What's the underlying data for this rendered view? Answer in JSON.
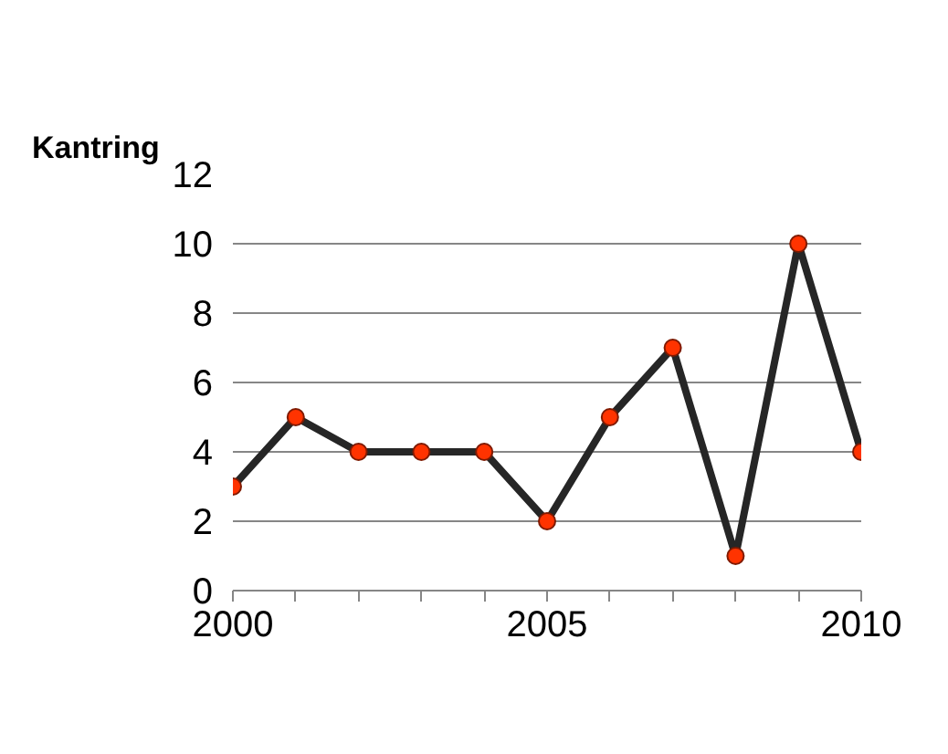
{
  "chart_data": {
    "type": "line",
    "title": "Kantring",
    "x": [
      2000,
      2001,
      2002,
      2003,
      2004,
      2005,
      2006,
      2007,
      2008,
      2009,
      2010
    ],
    "series": [
      {
        "color": "#262626",
        "values": [
          3,
          5,
          4,
          4,
          4,
          2,
          5,
          7,
          1,
          10,
          4
        ]
      }
    ],
    "xlim": [
      2000,
      2010
    ],
    "xticks": [
      2000,
      {
        "value": 2001,
        "label": null
      },
      {
        "value": 2002,
        "label": null
      },
      {
        "value": 2003,
        "label": null
      },
      {
        "value": 2004,
        "label": null
      },
      2005,
      {
        "value": 2006,
        "label": null
      },
      {
        "value": 2007,
        "label": null
      },
      {
        "value": 2008,
        "label": null
      },
      {
        "value": 2009,
        "label": null
      },
      2010
    ],
    "ylim": [
      0,
      12
    ],
    "yticks": [
      0,
      2,
      4,
      6,
      8,
      10,
      12
    ],
    "grid": "y",
    "marker": "circle",
    "line_style": "solid"
  }
}
